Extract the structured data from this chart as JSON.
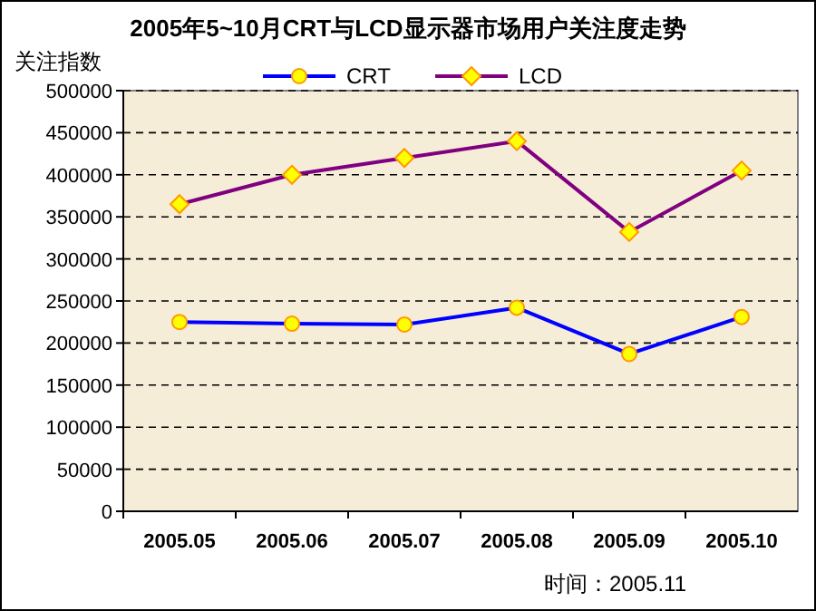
{
  "chart_data": {
    "type": "line",
    "title": "2005年5~10月CRT与LCD显示器市场用户关注度走势",
    "ylabel": "关注指数",
    "categories": [
      "2005.05",
      "2005.06",
      "2005.07",
      "2005.08",
      "2005.09",
      "2005.10"
    ],
    "series": [
      {
        "name": "CRT",
        "color": "#0000ff",
        "marker": "circle",
        "values": [
          225000,
          223000,
          222000,
          242000,
          187000,
          231000
        ]
      },
      {
        "name": "LCD",
        "color": "#800080",
        "marker": "diamond",
        "values": [
          365000,
          400000,
          420000,
          440000,
          332000,
          405000
        ]
      }
    ],
    "ylim": [
      0,
      500000
    ],
    "yticks": [
      0,
      50000,
      100000,
      150000,
      200000,
      250000,
      300000,
      350000,
      400000,
      450000,
      500000
    ],
    "grid": "y",
    "legend": "top",
    "line_style": "solid",
    "annotations": [
      "时间：2005.11"
    ]
  }
}
